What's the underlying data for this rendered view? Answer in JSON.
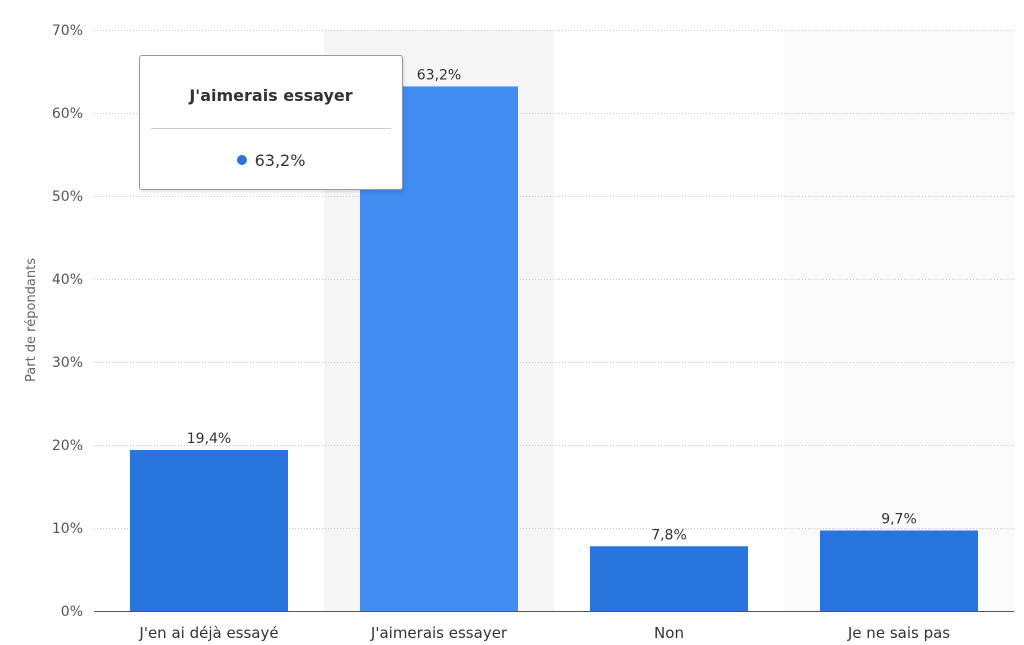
{
  "chart_data": {
    "type": "bar",
    "categories": [
      "J'en ai déjà essayé",
      "J'aimerais essayer",
      "Non",
      "Je ne sais pas"
    ],
    "values": [
      19.4,
      63.2,
      7.8,
      9.7
    ],
    "value_labels": [
      "19,4%",
      "63,2%",
      "7,8%",
      "9,7%"
    ],
    "ylabel": "Part de répondants",
    "ylim": [
      0,
      70
    ],
    "yticks": [
      0,
      10,
      20,
      30,
      40,
      50,
      60,
      70
    ],
    "ytick_labels": [
      "0%",
      "10%",
      "20%",
      "30%",
      "40%",
      "50%",
      "60%",
      "70%"
    ],
    "grid": true,
    "highlighted_index": 1
  },
  "colors": {
    "bar": "#2876DD",
    "bar_highlight": "#418CF0",
    "hover_band": "#F5F5F5",
    "alt_band": "#FAFAFA"
  },
  "tooltip": {
    "title": "J'aimerais essayer",
    "value": "63,2%",
    "dot_color": "#2876DD"
  }
}
